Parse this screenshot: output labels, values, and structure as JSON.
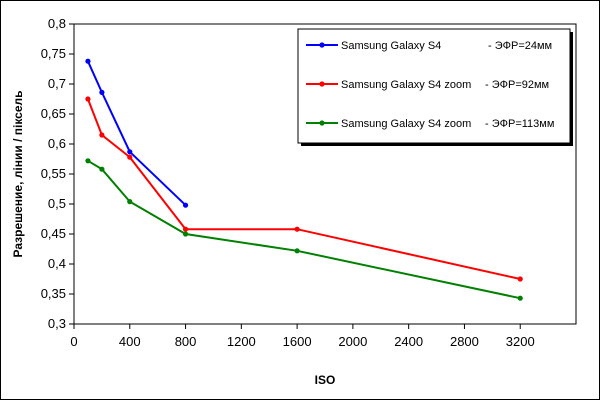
{
  "chart_data": {
    "type": "line",
    "title": "",
    "xlabel": "ISO",
    "ylabel": "Разрешение, лінии / піксель",
    "xlim": [
      0,
      3600
    ],
    "ylim": [
      0.3,
      0.8
    ],
    "x_ticks": [
      0,
      400,
      800,
      1200,
      1600,
      2000,
      2400,
      2800,
      3200
    ],
    "x_tick_labels": [
      "0",
      "400",
      "800",
      "1200",
      "1600",
      "2000",
      "2400",
      "2800",
      "3200"
    ],
    "y_ticks": [
      0.3,
      0.35,
      0.4,
      0.45,
      0.5,
      0.55,
      0.6,
      0.65,
      0.7,
      0.75,
      0.8
    ],
    "y_tick_labels": [
      "0,3",
      "0,35",
      "0,4",
      "0,45",
      "0,5",
      "0,55",
      "0,6",
      "0,65",
      "0,7",
      "0,75",
      "0,8"
    ],
    "grid": false,
    "legend_position": "top-right",
    "series": [
      {
        "name": "Samsung Galaxy S4",
        "suffix": "- ЭФР=24мм",
        "color": "#0000ff",
        "points": [
          [
            100,
            0.738
          ],
          [
            200,
            0.686
          ],
          [
            400,
            0.587
          ],
          [
            800,
            0.498
          ]
        ]
      },
      {
        "name": "Samsung Galaxy S4 zoom",
        "suffix": "- ЭФР=92мм",
        "color": "#ff0000",
        "points": [
          [
            100,
            0.675
          ],
          [
            200,
            0.615
          ],
          [
            400,
            0.578
          ],
          [
            800,
            0.458
          ],
          [
            1600,
            0.458
          ],
          [
            3200,
            0.375
          ]
        ]
      },
      {
        "name": "Samsung Galaxy S4 zoom",
        "suffix": "- ЭФР=113мм",
        "color": "#008000",
        "points": [
          [
            100,
            0.572
          ],
          [
            200,
            0.558
          ],
          [
            400,
            0.504
          ],
          [
            800,
            0.45
          ],
          [
            1600,
            0.422
          ],
          [
            3200,
            0.343
          ]
        ]
      }
    ]
  }
}
